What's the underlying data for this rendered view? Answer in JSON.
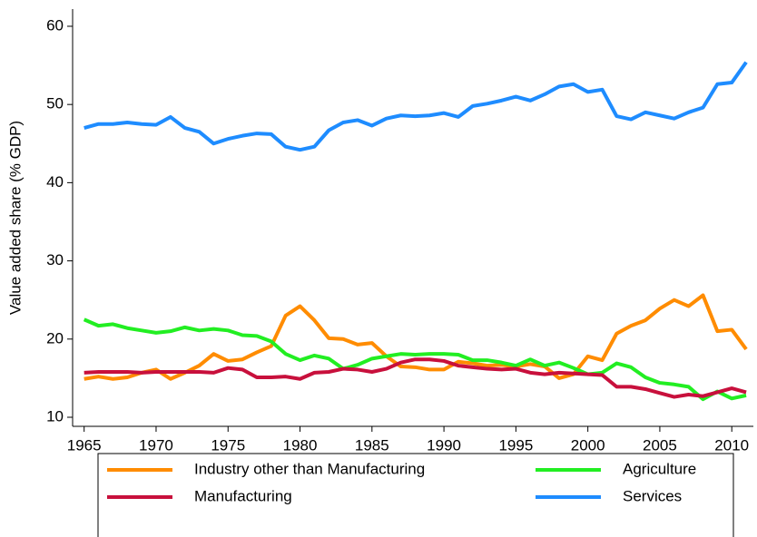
{
  "chart_data": {
    "type": "line",
    "y_label": "Value added share (% GDP)",
    "x": [
      1965,
      1966,
      1967,
      1968,
      1969,
      1970,
      1971,
      1972,
      1973,
      1974,
      1975,
      1976,
      1977,
      1978,
      1979,
      1980,
      1981,
      1982,
      1983,
      1984,
      1985,
      1986,
      1987,
      1988,
      1989,
      1990,
      1991,
      1992,
      1993,
      1994,
      1995,
      1996,
      1997,
      1998,
      1999,
      2000,
      2001,
      2002,
      2003,
      2004,
      2005,
      2006,
      2007,
      2008,
      2009,
      2010,
      2011
    ],
    "series": [
      {
        "name": "Industry other than Manufacturing",
        "color": "#ff8c00",
        "values": [
          14.9,
          15.2,
          14.9,
          15.1,
          15.7,
          16.1,
          14.9,
          15.7,
          16.6,
          18.1,
          17.2,
          17.4,
          18.3,
          19.1,
          23.0,
          24.2,
          22.4,
          20.1,
          20.0,
          19.3,
          19.5,
          17.8,
          16.5,
          16.4,
          16.1,
          16.1,
          17.1,
          16.9,
          16.6,
          16.7,
          16.5,
          16.8,
          16.5,
          15.0,
          15.5,
          17.8,
          17.3,
          20.7,
          21.7,
          22.4,
          23.9,
          25.0,
          24.2,
          25.6,
          21.0,
          21.2,
          18.7
        ]
      },
      {
        "name": "Agriculture",
        "color": "#22ee22",
        "values": [
          22.5,
          21.7,
          21.9,
          21.4,
          21.1,
          20.8,
          21.0,
          21.5,
          21.1,
          21.3,
          21.1,
          20.5,
          20.4,
          19.7,
          18.1,
          17.3,
          17.9,
          17.5,
          16.2,
          16.7,
          17.5,
          17.8,
          18.1,
          18.0,
          18.1,
          18.1,
          18.0,
          17.3,
          17.3,
          17.0,
          16.6,
          17.4,
          16.6,
          17.0,
          16.3,
          15.5,
          15.7,
          16.9,
          16.4,
          15.1,
          14.4,
          14.2,
          13.9,
          12.3,
          13.3,
          12.4,
          12.8
        ]
      },
      {
        "name": "Manufacturing",
        "color": "#c8103c",
        "values": [
          15.7,
          15.8,
          15.8,
          15.8,
          15.7,
          15.8,
          15.8,
          15.8,
          15.8,
          15.7,
          16.3,
          16.1,
          15.1,
          15.1,
          15.2,
          14.9,
          15.7,
          15.8,
          16.2,
          16.1,
          15.8,
          16.2,
          17.0,
          17.4,
          17.4,
          17.2,
          16.6,
          16.4,
          16.2,
          16.1,
          16.2,
          15.7,
          15.5,
          15.7,
          15.6,
          15.5,
          15.4,
          13.9,
          13.9,
          13.6,
          13.1,
          12.6,
          12.9,
          12.7,
          13.2,
          13.7,
          13.2
        ]
      },
      {
        "name": "Services",
        "color": "#1e8cff",
        "values": [
          47.0,
          47.5,
          47.5,
          47.7,
          47.5,
          47.4,
          48.4,
          47.0,
          46.5,
          45.0,
          45.6,
          46.0,
          46.3,
          46.2,
          44.6,
          44.2,
          44.6,
          46.7,
          47.7,
          48.0,
          47.3,
          48.2,
          48.6,
          48.5,
          48.6,
          48.9,
          48.4,
          49.8,
          50.1,
          50.5,
          51.0,
          50.5,
          51.3,
          52.3,
          52.6,
          51.6,
          51.9,
          48.5,
          48.1,
          49.0,
          48.6,
          48.2,
          49.0,
          49.6,
          52.6,
          52.8,
          55.4
        ]
      }
    ],
    "xlim": [
      1964.2,
      2011.5
    ],
    "xticks": [
      1965,
      1970,
      1975,
      1980,
      1985,
      1990,
      1995,
      2000,
      2005,
      2010
    ],
    "ylim": [
      8.84,
      62.2
    ],
    "yticks": [
      10,
      20,
      30,
      40,
      50,
      60
    ],
    "legend": "bottom"
  }
}
